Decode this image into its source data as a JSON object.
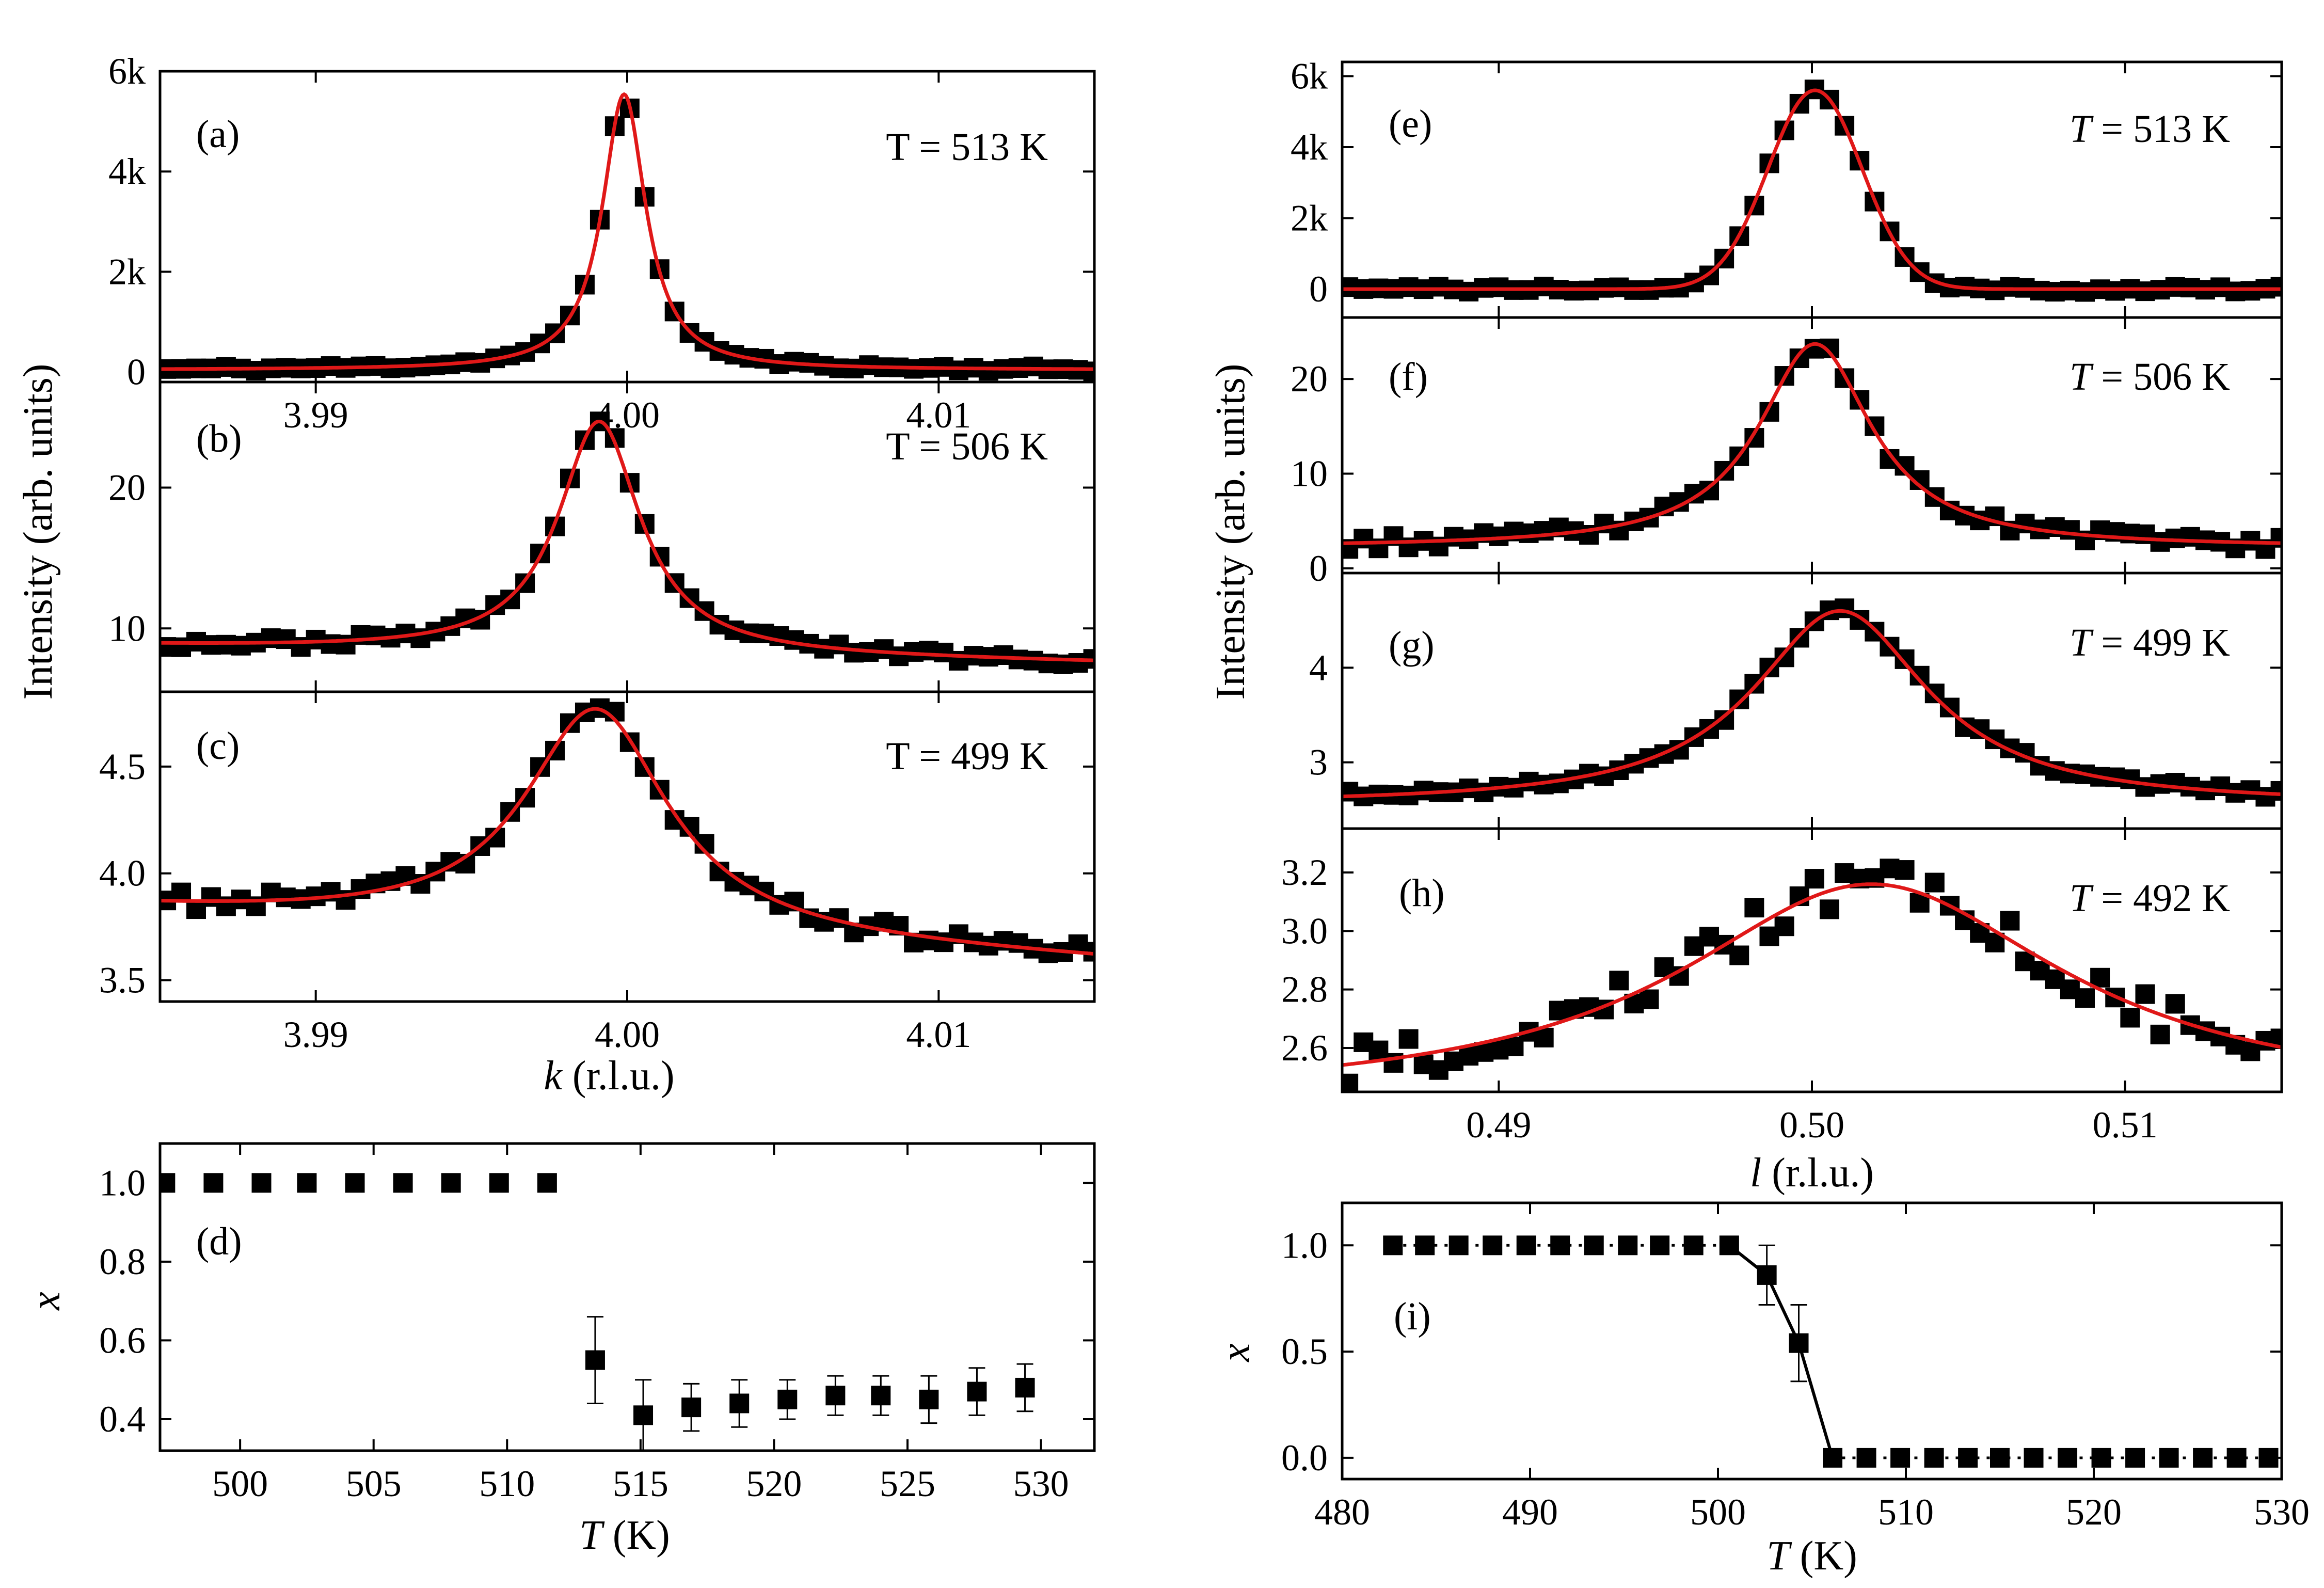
{
  "figure": {
    "left_top_ylabel": "Intensity (arb. units)",
    "right_top_ylabel": "Intensity (arb. units)",
    "left_top_xlabel_italic": "k",
    "left_top_xlabel_rest": " (r.l.u.)",
    "right_top_xlabel_italic": "l",
    "right_top_xlabel_rest": " (r.l.u.)",
    "left_bottom_xlabel_italic": "T",
    "left_bottom_xlabel_rest": " (K)",
    "right_bottom_xlabel_italic": "T",
    "right_bottom_xlabel_rest": " (K)",
    "left_bottom_ylabel": "x",
    "right_bottom_ylabel": "x"
  },
  "colors": {
    "marker": "#000000",
    "fit": "#e01818",
    "axis": "#000000"
  },
  "chart_data": [
    {
      "id": "a",
      "type": "scatter",
      "panel_label": "(a)",
      "temp_prefix": "T",
      "temp_italic": false,
      "temp_value": " = 513 K",
      "xlim": [
        3.985,
        4.015
      ],
      "ylim": [
        -200,
        6000
      ],
      "yticks": [
        0,
        2000,
        4000,
        6000
      ],
      "yticklabels": [
        "0",
        "2k",
        "4k",
        "6k"
      ],
      "xticks": [
        3.99,
        4.0,
        4.01
      ],
      "xticklabels": [
        "3.99",
        "4.00",
        "4.01"
      ],
      "peak": {
        "kind": "lorentz",
        "center": 3.9999,
        "amp": 5500,
        "width": 0.00085,
        "base": 40,
        "slope": 0
      },
      "x_start": 3.9852,
      "x_step": 0.00048,
      "noise": 50,
      "seed": 11
    },
    {
      "id": "b",
      "type": "scatter",
      "panel_label": "(b)",
      "temp_prefix": "T",
      "temp_italic": false,
      "temp_value": " = 506 K",
      "xlim": [
        3.985,
        4.015
      ],
      "ylim": [
        5.5,
        27.5
      ],
      "yticks": [
        10,
        20
      ],
      "yticklabels": [
        "10",
        "20"
      ],
      "xticks": [
        3.99,
        4.0,
        4.01
      ],
      "xticklabels": [
        "",
        "",
        ""
      ],
      "peak": {
        "kind": "lorentz",
        "center": 3.9991,
        "amp": 16.5,
        "width": 0.0016,
        "base": 8.2,
        "slope": -40
      },
      "x_start": 3.9852,
      "x_step": 0.00048,
      "noise": 0.35,
      "seed": 23
    },
    {
      "id": "c",
      "type": "scatter",
      "panel_label": "(c)",
      "temp_prefix": "T",
      "temp_italic": false,
      "temp_value": " = 499 K",
      "xlim": [
        3.985,
        4.015
      ],
      "ylim": [
        3.4,
        4.85
      ],
      "yticks": [
        3.5,
        4.0,
        4.5
      ],
      "yticklabels": [
        "3.5",
        "4.0",
        "4.5"
      ],
      "xticks": [
        3.99,
        4.0,
        4.01
      ],
      "xticklabels": [
        "3.99",
        "4.00",
        "4.01"
      ],
      "peak": {
        "kind": "lorentz",
        "center": 3.999,
        "amp": 1.05,
        "width": 0.0028,
        "base": 3.72,
        "slope": -8
      },
      "x_start": 3.9852,
      "x_step": 0.00048,
      "noise": 0.04,
      "seed": 37
    },
    {
      "id": "e",
      "type": "scatter",
      "panel_label": "(e)",
      "temp_prefix": "T",
      "temp_italic": true,
      "temp_value": " = 513 K",
      "xlim": [
        0.485,
        0.515
      ],
      "ylim": [
        -800,
        6400
      ],
      "yticks": [
        0,
        2000,
        4000,
        6000
      ],
      "yticklabels": [
        "0",
        "2k",
        "4k",
        "6k"
      ],
      "xticks": [
        0.49,
        0.5,
        0.51
      ],
      "xticklabels": [
        "",
        "",
        ""
      ],
      "peak": {
        "kind": "gauss",
        "center": 0.5001,
        "amp": 5600,
        "width": 0.0015,
        "base": 0,
        "slope": 0
      },
      "x_start": 0.4852,
      "x_step": 0.00048,
      "noise": 80,
      "seed": 41
    },
    {
      "id": "f",
      "type": "scatter",
      "panel_label": "(f)",
      "temp_prefix": "T",
      "temp_italic": true,
      "temp_value": " = 506 K",
      "xlim": [
        0.485,
        0.515
      ],
      "ylim": [
        -0.5,
        26.5
      ],
      "yticks": [
        0,
        10,
        20
      ],
      "yticklabels": [
        "0",
        "10",
        "20"
      ],
      "xticks": [
        0.49,
        0.5,
        0.51
      ],
      "xticklabels": [
        "",
        "",
        ""
      ],
      "peak": {
        "kind": "lorentz",
        "center": 0.5001,
        "amp": 21.5,
        "width": 0.0022,
        "base": 2.2,
        "slope": 0
      },
      "x_start": 0.4852,
      "x_step": 0.00048,
      "noise": 0.7,
      "seed": 53
    },
    {
      "id": "g",
      "type": "scatter",
      "panel_label": "(g)",
      "temp_prefix": "T",
      "temp_italic": true,
      "temp_value": " = 499 K",
      "xlim": [
        0.485,
        0.515
      ],
      "ylim": [
        2.3,
        5.0
      ],
      "yticks": [
        3,
        4
      ],
      "yticklabels": [
        "3",
        "4"
      ],
      "xticks": [
        0.49,
        0.5,
        0.51
      ],
      "xticklabels": [
        "",
        "",
        ""
      ],
      "peak": {
        "kind": "lorentz",
        "center": 0.5009,
        "amp": 2.05,
        "width": 0.0034,
        "base": 2.55,
        "slope": 0
      },
      "x_start": 0.4852,
      "x_step": 0.00048,
      "noise": 0.05,
      "seed": 67
    },
    {
      "id": "h",
      "type": "scatter",
      "panel_label": "(h)",
      "temp_prefix": "T",
      "temp_italic": true,
      "temp_value": " = 492 K",
      "xlim": [
        0.485,
        0.515
      ],
      "ylim": [
        2.45,
        3.35
      ],
      "yticks": [
        2.6,
        2.8,
        3.0,
        3.2
      ],
      "yticklabels": [
        "2.6",
        "2.8",
        "3.0",
        "3.2"
      ],
      "xticks": [
        0.49,
        0.5,
        0.51
      ],
      "xticklabels": [
        "0.49",
        "0.50",
        "0.51"
      ],
      "peak": {
        "kind": "lorentz",
        "center": 0.5019,
        "amp": 0.74,
        "width": 0.0075,
        "base": 2.42,
        "slope": 0
      },
      "x_start": 0.4852,
      "x_step": 0.00048,
      "noise": 0.07,
      "seed": 79
    },
    {
      "id": "d",
      "type": "scatter",
      "panel_label": "(d)",
      "xlim": [
        497,
        532
      ],
      "ylim": [
        0.32,
        1.1
      ],
      "yticks": [
        0.4,
        0.6,
        0.8,
        1.0
      ],
      "yticklabels": [
        "0.4",
        "0.6",
        "0.8",
        "1.0"
      ],
      "xticks": [
        500,
        505,
        510,
        515,
        520,
        525,
        530
      ],
      "xticklabels": [
        "500",
        "505",
        "510",
        "515",
        "520",
        "525",
        "530"
      ],
      "points": [
        {
          "x": 497.2,
          "y": 1.0
        },
        {
          "x": 499.0,
          "y": 1.0
        },
        {
          "x": 500.8,
          "y": 1.0
        },
        {
          "x": 502.5,
          "y": 1.0
        },
        {
          "x": 504.3,
          "y": 1.0
        },
        {
          "x": 506.1,
          "y": 1.0
        },
        {
          "x": 507.9,
          "y": 1.0
        },
        {
          "x": 509.7,
          "y": 1.0
        },
        {
          "x": 511.5,
          "y": 1.0
        },
        {
          "x": 513.3,
          "y": 0.55,
          "err": 0.11
        },
        {
          "x": 515.1,
          "y": 0.41,
          "err": 0.09
        },
        {
          "x": 516.9,
          "y": 0.43,
          "err": 0.06
        },
        {
          "x": 518.7,
          "y": 0.44,
          "err": 0.06
        },
        {
          "x": 520.5,
          "y": 0.45,
          "err": 0.05
        },
        {
          "x": 522.3,
          "y": 0.46,
          "err": 0.05
        },
        {
          "x": 524.0,
          "y": 0.46,
          "err": 0.05
        },
        {
          "x": 525.8,
          "y": 0.45,
          "err": 0.06
        },
        {
          "x": 527.6,
          "y": 0.47,
          "err": 0.06
        },
        {
          "x": 529.4,
          "y": 0.48,
          "err": 0.06
        }
      ]
    },
    {
      "id": "i",
      "type": "line",
      "panel_label": "(i)",
      "xlim": [
        480,
        530
      ],
      "ylim": [
        -0.1,
        1.2
      ],
      "yticks": [
        0.0,
        0.5,
        1.0
      ],
      "yticklabels": [
        "0.0",
        "0.5",
        "1.0"
      ],
      "xticks": [
        480,
        490,
        500,
        510,
        520,
        530
      ],
      "xticklabels": [
        "480",
        "490",
        "500",
        "510",
        "520",
        "530"
      ],
      "points": [
        {
          "x": 482.7,
          "y": 1.0
        },
        {
          "x": 484.4,
          "y": 1.0
        },
        {
          "x": 486.2,
          "y": 1.0
        },
        {
          "x": 488.0,
          "y": 1.0
        },
        {
          "x": 489.8,
          "y": 1.0
        },
        {
          "x": 491.6,
          "y": 1.0
        },
        {
          "x": 493.4,
          "y": 1.0
        },
        {
          "x": 495.2,
          "y": 1.0
        },
        {
          "x": 496.9,
          "y": 1.0
        },
        {
          "x": 498.7,
          "y": 1.0
        },
        {
          "x": 500.6,
          "y": 1.0
        },
        {
          "x": 502.6,
          "y": 0.86,
          "err": 0.14
        },
        {
          "x": 504.3,
          "y": 0.54,
          "err": 0.18
        },
        {
          "x": 506.1,
          "y": 0.0
        },
        {
          "x": 507.9,
          "y": 0.0
        },
        {
          "x": 509.7,
          "y": 0.0
        },
        {
          "x": 511.5,
          "y": 0.0
        },
        {
          "x": 513.3,
          "y": 0.0
        },
        {
          "x": 515.0,
          "y": 0.0
        },
        {
          "x": 516.8,
          "y": 0.0
        },
        {
          "x": 518.6,
          "y": 0.0
        },
        {
          "x": 520.4,
          "y": 0.0
        },
        {
          "x": 522.2,
          "y": 0.0
        },
        {
          "x": 524.0,
          "y": 0.0
        },
        {
          "x": 525.8,
          "y": 0.0
        },
        {
          "x": 527.6,
          "y": 0.0
        },
        {
          "x": 529.3,
          "y": 0.0
        }
      ]
    }
  ]
}
